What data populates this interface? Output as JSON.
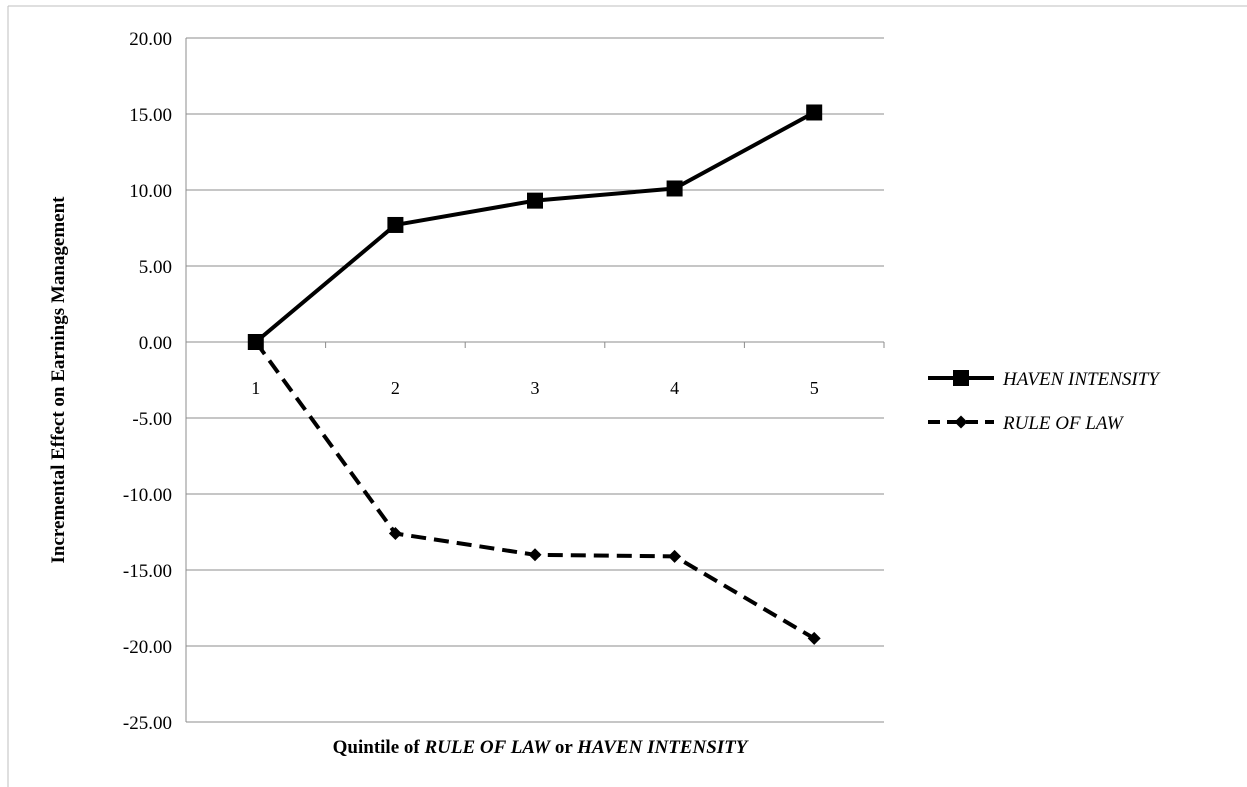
{
  "chart_data": {
    "type": "line",
    "x": [
      "1",
      "2",
      "3",
      "4",
      "5"
    ],
    "series": [
      {
        "name": "HAVEN INTENSITY",
        "values": [
          0.0,
          7.7,
          9.3,
          10.1,
          15.1
        ],
        "line_style": "solid",
        "marker": "square",
        "color": "#000000"
      },
      {
        "name": "RULE OF LAW",
        "values": [
          0.0,
          -12.6,
          -14.0,
          -14.1,
          -19.5
        ],
        "line_style": "dashed",
        "marker": "diamond",
        "color": "#000000"
      }
    ],
    "title": "",
    "xlabel": {
      "parts": [
        {
          "text": "Quintile of ",
          "italic": false
        },
        {
          "text": "RULE  OF  LAW",
          "italic": true
        },
        {
          "text": " or ",
          "italic": false
        },
        {
          "text": "HAVEN INTENSITY",
          "italic": true
        }
      ]
    },
    "ylabel": "Incremental Effect on Earnings Management",
    "ylim": [
      -25,
      20
    ],
    "yticks": [
      "20.00",
      "15.00",
      "10.00",
      "5.00",
      "0.00",
      "-5.00",
      "-10.00",
      "-15.00",
      "-20.00",
      "-25.00"
    ],
    "grid": "horizontal",
    "legend_position": "right"
  }
}
